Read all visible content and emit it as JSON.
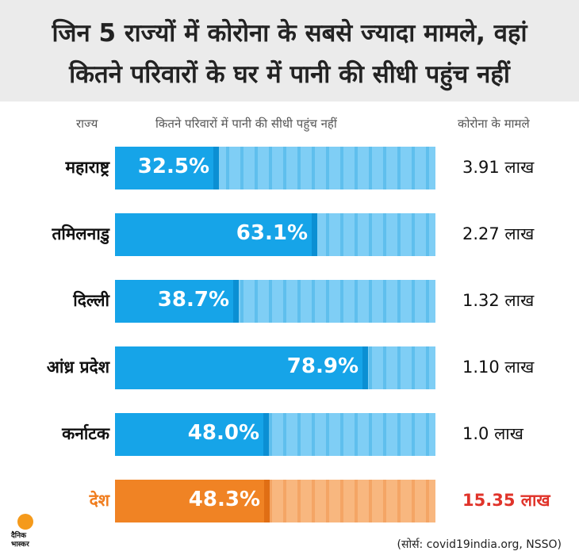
{
  "header": {
    "title_line1": "जिन 5 राज्यों में कोरोना के सबसे ज्यादा मामले, वहां",
    "title_line2": "कितने परिवारों के घर में पानी की सीधी पहुंच नहीं"
  },
  "columns": {
    "state": "राज्य",
    "water": "कितने परिवारों में पानी की सीधी पहुंच नहीं",
    "cases": "कोरोना के मामले"
  },
  "chart_data": {
    "type": "bar",
    "title": "जिन 5 राज्यों में कोरोना के सबसे ज्यादा मामले, वहां कितने परिवारों के घर में पानी की सीधी पहुंच नहीं",
    "xlabel": "",
    "ylabel": "",
    "ylim": [
      0,
      100
    ],
    "categories": [
      "महाराष्ट्र",
      "तमिलनाडु",
      "दिल्ली",
      "आंध्र प्रदेश",
      "कर्नाटक",
      "देश"
    ],
    "values": [
      32.5,
      63.1,
      38.7,
      78.9,
      48.0,
      48.3
    ],
    "value_labels": [
      "32.5%",
      "63.1%",
      "38.7%",
      "78.9%",
      "48.0%",
      "48.3%"
    ],
    "cases": [
      "3.91 लाख",
      "2.27 लाख",
      "1.32 लाख",
      "1.10 लाख",
      "1.0 लाख",
      "15.35 लाख"
    ],
    "highlight_index": 5
  },
  "colors": {
    "bar_blue": "#16a4e8",
    "track_blue": "#7fcef5",
    "bar_orange": "#f08324",
    "track_orange": "#f8b77f",
    "highlight_text": "#f07d1e",
    "highlight_cases": "#e0332a"
  },
  "logo": {
    "line1": "दैनिक",
    "line2": "भास्कर"
  },
  "source": "(सोर्स: covid19india.org, NSSO)"
}
